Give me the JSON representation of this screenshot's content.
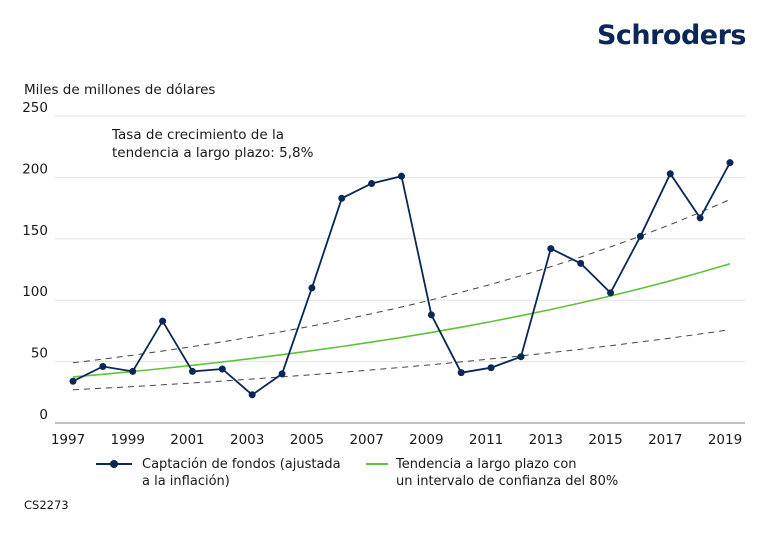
{
  "brand": "Schroders",
  "footer_code": "CS2273",
  "colors": {
    "series": "#0a2756",
    "trend": "#5fc33a",
    "band": "#444444",
    "grid": "#e3e3e3"
  },
  "chart_data": {
    "type": "line",
    "ylabel": "Miles de millones de dólares",
    "annotation_line1": "Tasa de crecimiento de la",
    "annotation_line2": "tendencia a largo plazo: 5,8%",
    "ylim": [
      0,
      250
    ],
    "yticks": [
      0,
      50,
      100,
      150,
      200,
      250
    ],
    "xlim": [
      1997,
      2019
    ],
    "xticks": [
      1997,
      1999,
      2001,
      2003,
      2005,
      2007,
      2009,
      2011,
      2013,
      2015,
      2017,
      2019
    ],
    "grid": true,
    "legend_placement": "bottom",
    "x": [
      1997,
      1998,
      1999,
      2000,
      2001,
      2002,
      2003,
      2004,
      2005,
      2006,
      2007,
      2008,
      2009,
      2010,
      2011,
      2012,
      2013,
      2014,
      2015,
      2016,
      2017,
      2018,
      2019
    ],
    "series": [
      {
        "name": "Captación de fondos (ajustada a la inflación)",
        "legend_line1": "Captación de fondos (ajustada",
        "legend_line2": "a la inflación)",
        "style": "line-markers",
        "values": [
          34,
          46,
          42,
          83,
          42,
          44,
          23,
          40,
          110,
          183,
          195,
          201,
          88,
          41,
          45,
          54,
          142,
          130,
          106,
          152,
          203,
          167,
          212
        ]
      },
      {
        "name": "Tendencia a largo plazo con un intervalo de confianza del 80%",
        "legend_line1": "Tendencia a largo plazo con",
        "legend_line2": "un intervalo de confianza del 80%",
        "style": "line",
        "start": 37.5,
        "growth_rate": 0.058
      },
      {
        "style": "dashed",
        "role": "upper-bound",
        "start": 49,
        "end": 182
      },
      {
        "style": "dashed",
        "role": "lower-bound",
        "start": 27,
        "end": 76
      }
    ]
  }
}
